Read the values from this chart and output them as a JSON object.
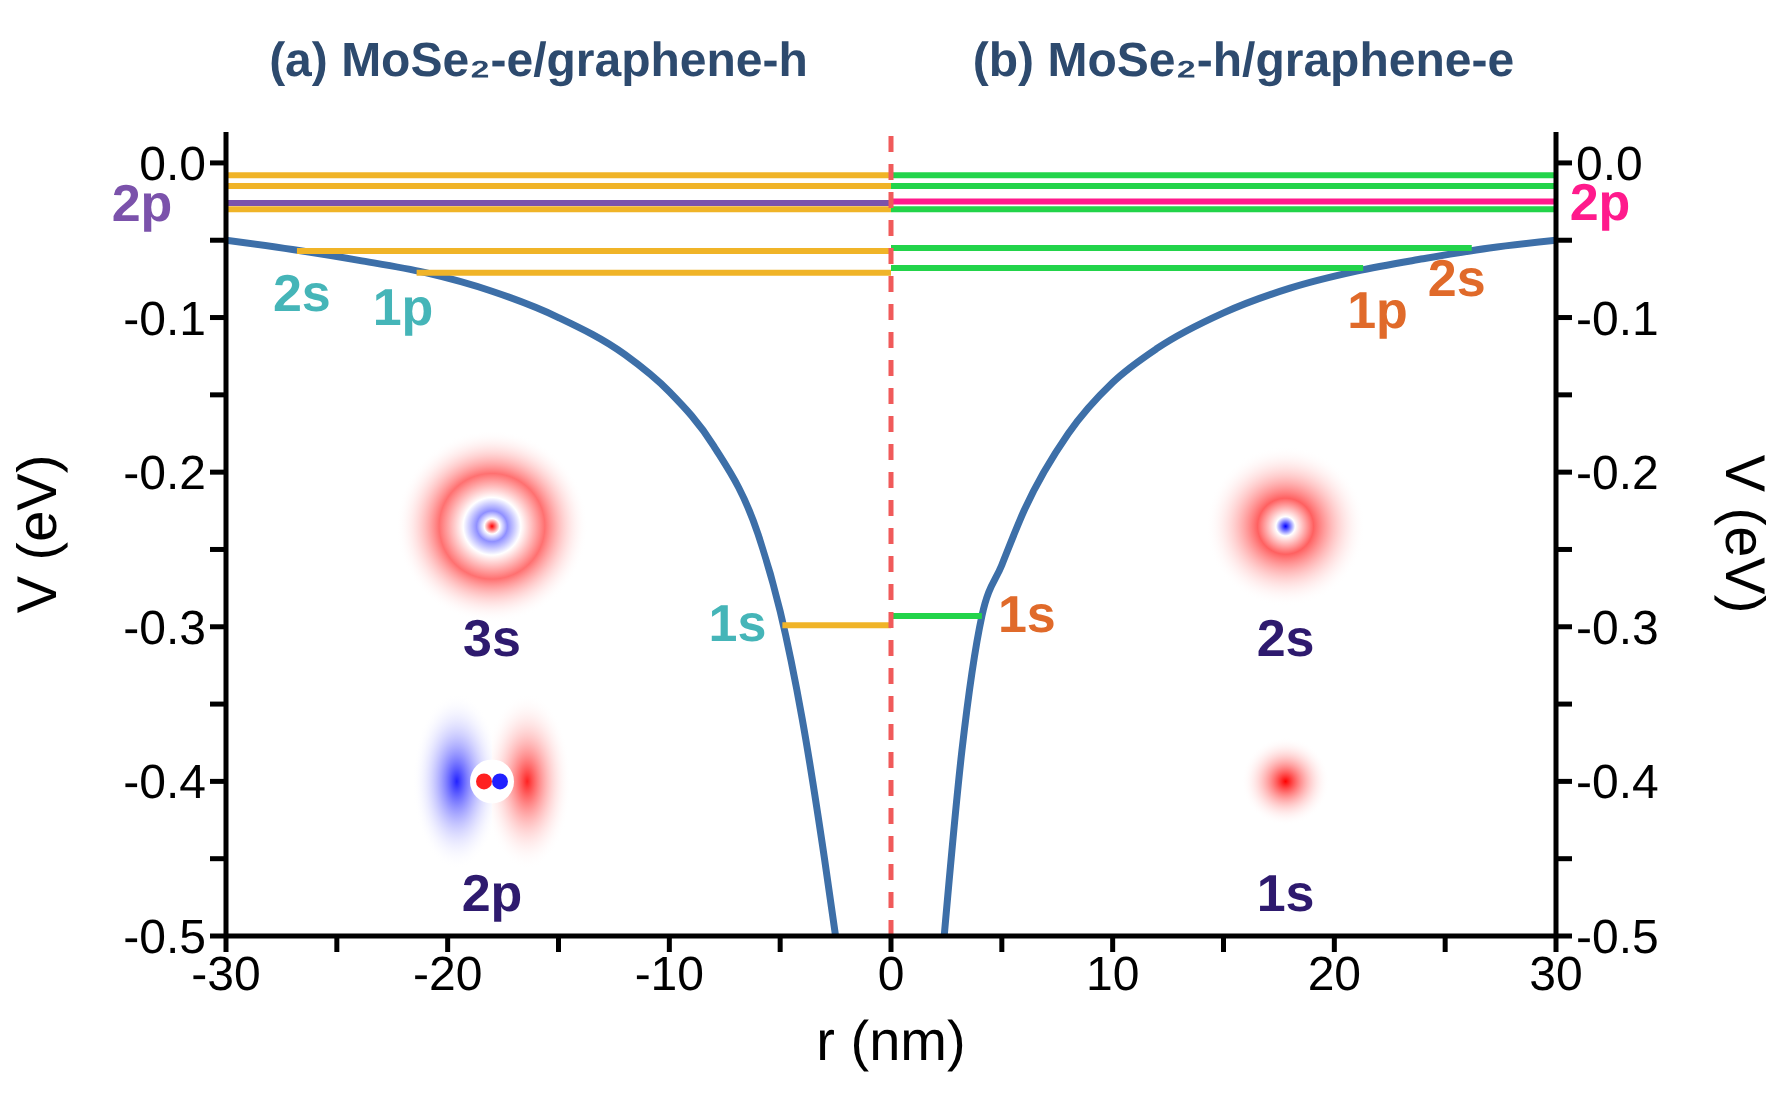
{
  "chart_data": {
    "type": "line",
    "xlabel": "r (nm)",
    "ylabel": "V (eV)",
    "y2label": "V (eV)",
    "xlim": [
      -30,
      30
    ],
    "xticks": [
      -30,
      {
        "value": -25,
        "label": null
      },
      -20,
      {
        "value": -15,
        "label": null
      },
      -10,
      {
        "value": -5,
        "label": null
      },
      0,
      {
        "value": 5,
        "label": null
      },
      10,
      {
        "value": 15,
        "label": null
      },
      20,
      {
        "value": 25,
        "label": null
      },
      30
    ],
    "ylim": [
      -0.5,
      0.02
    ],
    "yticks": [
      {
        "value": 0,
        "label": "0.0"
      },
      {
        "value": -0.05,
        "label": null
      },
      {
        "value": -0.1,
        "label": "-0.1"
      },
      {
        "value": -0.15,
        "label": null
      },
      {
        "value": -0.2,
        "label": "-0.2"
      },
      {
        "value": -0.25,
        "label": null
      },
      {
        "value": -0.3,
        "label": "-0.3"
      },
      {
        "value": -0.35,
        "label": null
      },
      {
        "value": -0.4,
        "label": "-0.4"
      },
      {
        "value": -0.45,
        "label": null
      },
      {
        "value": -0.5,
        "label": "-0.5"
      }
    ],
    "y2lim": [
      -0.5,
      0.02
    ],
    "y2ticks": [
      {
        "value": 0,
        "label": "0.0"
      },
      {
        "value": -0.05,
        "label": null
      },
      {
        "value": -0.1,
        "label": "-0.1"
      },
      {
        "value": -0.15,
        "label": null
      },
      {
        "value": -0.2,
        "label": "-0.2"
      },
      {
        "value": -0.25,
        "label": null
      },
      {
        "value": -0.3,
        "label": "-0.3"
      },
      {
        "value": -0.35,
        "label": null
      },
      {
        "value": -0.4,
        "label": "-0.4"
      },
      {
        "value": -0.45,
        "label": null
      },
      {
        "value": -0.5,
        "label": "-0.5"
      }
    ],
    "marker": "none",
    "line_style": "solid",
    "series": [
      {
        "color": "#3d6fa8",
        "x": [
          -30,
          -27,
          -24,
          -21,
          -18,
          -15,
          -12,
          -10,
          -8,
          -6,
          -5,
          -4,
          -3,
          -2.5
        ],
        "values": [
          -0.05,
          -0.056,
          -0.063,
          -0.071,
          -0.083,
          -0.1,
          -0.124,
          -0.148,
          -0.183,
          -0.24,
          -0.29,
          -0.36,
          -0.45,
          -0.5
        ]
      },
      {
        "color": "#3d6fa8",
        "x": [
          2.4,
          3.2,
          4.1,
          5,
          6,
          8,
          10,
          12,
          15,
          18,
          21,
          24,
          27,
          30
        ],
        "values": [
          -0.5,
          -0.38,
          -0.293,
          -0.26,
          -0.225,
          -0.175,
          -0.142,
          -0.12,
          -0.097,
          -0.081,
          -0.07,
          -0.062,
          -0.055,
          -0.05
        ]
      },
      {
        "color": "#f0b428",
        "x": [
          -30,
          0
        ],
        "values": [
          -0.008,
          -0.008
        ]
      },
      {
        "color": "#f0b428",
        "x": [
          -30,
          0
        ],
        "values": [
          -0.015,
          -0.015
        ]
      },
      {
        "color": "#f0b428",
        "x": [
          -30,
          0
        ],
        "values": [
          -0.03,
          -0.03
        ]
      },
      {
        "color": "#7b52ab",
        "x": [
          -30,
          0
        ],
        "values": [
          -0.026,
          -0.026
        ]
      },
      {
        "color": "#f0b428",
        "x": [
          -26.8,
          0
        ],
        "values": [
          -0.057,
          -0.057
        ]
      },
      {
        "color": "#f0b428",
        "x": [
          -21.4,
          0
        ],
        "values": [
          -0.071,
          -0.071
        ]
      },
      {
        "color": "#f0b428",
        "x": [
          -4.9,
          0
        ],
        "values": [
          -0.299,
          -0.299
        ]
      },
      {
        "color": "#22d44a",
        "x": [
          0,
          30
        ],
        "values": [
          -0.008,
          -0.008
        ]
      },
      {
        "color": "#22d44a",
        "x": [
          0,
          30
        ],
        "values": [
          -0.015,
          -0.015
        ]
      },
      {
        "color": "#22d44a",
        "x": [
          0,
          30
        ],
        "values": [
          -0.03,
          -0.03
        ]
      },
      {
        "color": "#ff1a8c",
        "x": [
          0,
          30
        ],
        "values": [
          -0.025,
          -0.025
        ]
      },
      {
        "color": "#22d44a",
        "x": [
          0,
          26.2
        ],
        "values": [
          -0.055,
          -0.055
        ]
      },
      {
        "color": "#22d44a",
        "x": [
          0,
          21.3
        ],
        "values": [
          -0.068,
          -0.068
        ]
      },
      {
        "color": "#22d44a",
        "x": [
          0,
          4.1
        ],
        "values": [
          -0.293,
          -0.293
        ]
      }
    ],
    "ref_lines": [
      {
        "axis": "x",
        "value": 0,
        "color": "#f05a5a",
        "line_style": "dashed"
      }
    ],
    "annotations": [
      "(a) MoSe₂-e/graphene-h",
      "(b) MoSe₂-h/graphene-e",
      {
        "text": "2p",
        "x": -30,
        "y": -0.026
      },
      {
        "text": "2s",
        "x": -26.8,
        "y": -0.057
      },
      {
        "text": "1p",
        "x": -21.4,
        "y": -0.071
      },
      {
        "text": "1s",
        "x": -4.9,
        "y": -0.299
      },
      {
        "text": "2p",
        "x": 30,
        "y": -0.025
      },
      {
        "text": "2s",
        "x": 26.2,
        "y": -0.055
      },
      {
        "text": "1p",
        "x": 21.3,
        "y": -0.068
      },
      {
        "text": "1s",
        "x": 4.1,
        "y": -0.293
      },
      "3s",
      "2p",
      "2s",
      "1s"
    ]
  }
}
